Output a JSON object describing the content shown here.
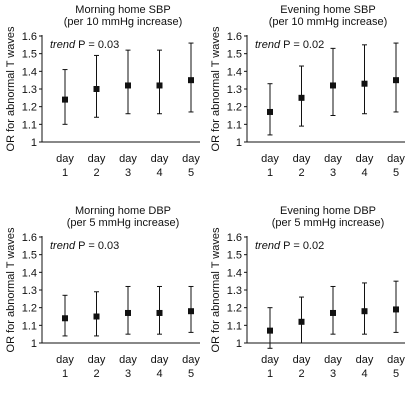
{
  "chart_data": [
    {
      "type": "scatter",
      "title": "Morning home SBP",
      "subtitle": "(per 10 mmHg increase)",
      "annotation_prefix": "trend",
      "annotation_value": "P = 0.03",
      "ylabel": "OR for abnormal T waves",
      "ylim": [
        1,
        1.6
      ],
      "yticks": [
        "1",
        "1.1",
        "1.2",
        "1.3",
        "1.4",
        "1.5",
        "1.6"
      ],
      "categories": [
        [
          "day",
          "1"
        ],
        [
          "day",
          "2"
        ],
        [
          "day",
          "3"
        ],
        [
          "day",
          "4"
        ],
        [
          "day",
          "5"
        ]
      ],
      "series": [
        {
          "values": [
            1.24,
            1.3,
            1.32,
            1.32,
            1.35
          ],
          "ci_low": [
            1.1,
            1.14,
            1.16,
            1.16,
            1.17
          ],
          "ci_high": [
            1.41,
            1.49,
            1.52,
            1.52,
            1.56
          ]
        }
      ],
      "reference_line": 1
    },
    {
      "type": "scatter",
      "title": "Evening home SBP",
      "subtitle": "(per 10 mmHg increase)",
      "annotation_prefix": "trend",
      "annotation_value": "P = 0.02",
      "ylabel": "OR for abnormal T waves",
      "ylim": [
        1,
        1.6
      ],
      "yticks": [
        "1",
        "1.1",
        "1.2",
        "1.3",
        "1.4",
        "1.5",
        "1.6"
      ],
      "categories": [
        [
          "day",
          "1"
        ],
        [
          "day",
          "2"
        ],
        [
          "day",
          "3"
        ],
        [
          "day",
          "4"
        ],
        [
          "day",
          "5"
        ]
      ],
      "series": [
        {
          "values": [
            1.17,
            1.25,
            1.32,
            1.33,
            1.35
          ],
          "ci_low": [
            1.04,
            1.09,
            1.15,
            1.16,
            1.17
          ],
          "ci_high": [
            1.33,
            1.43,
            1.53,
            1.55,
            1.56
          ]
        }
      ],
      "reference_line": 1
    },
    {
      "type": "scatter",
      "title": "Morning home DBP",
      "subtitle": "(per 5 mmHg increase)",
      "annotation_prefix": "trend",
      "annotation_value": "P = 0.03",
      "ylabel": "OR for abnormal T waves",
      "ylim": [
        1,
        1.6
      ],
      "yticks": [
        "1",
        "1.1",
        "1.2",
        "1.3",
        "1.4",
        "1.5",
        "1.6"
      ],
      "categories": [
        [
          "day",
          "1"
        ],
        [
          "day",
          "2"
        ],
        [
          "day",
          "3"
        ],
        [
          "day",
          "4"
        ],
        [
          "day",
          "5"
        ]
      ],
      "series": [
        {
          "values": [
            1.14,
            1.15,
            1.17,
            1.17,
            1.18
          ],
          "ci_low": [
            1.04,
            1.04,
            1.05,
            1.05,
            1.06
          ],
          "ci_high": [
            1.27,
            1.29,
            1.32,
            1.32,
            1.32
          ]
        }
      ],
      "reference_line": 1
    },
    {
      "type": "scatter",
      "title": "Evening home DBP",
      "subtitle": "(per 5 mmHg increase)",
      "annotation_prefix": "trend",
      "annotation_value": "P = 0.02",
      "ylabel": "OR for abnormal T waves",
      "ylim": [
        1,
        1.6
      ],
      "yticks": [
        "1",
        "1.1",
        "1.2",
        "1.3",
        "1.4",
        "1.5",
        "1.6"
      ],
      "categories": [
        [
          "day",
          "1"
        ],
        [
          "day",
          "2"
        ],
        [
          "day",
          "3"
        ],
        [
          "day",
          "4"
        ],
        [
          "day",
          "5"
        ]
      ],
      "series": [
        {
          "values": [
            1.07,
            1.12,
            1.17,
            1.18,
            1.19
          ],
          "ci_low": [
            0.97,
            1.0,
            1.05,
            1.05,
            1.06
          ],
          "ci_high": [
            1.2,
            1.26,
            1.32,
            1.34,
            1.35
          ]
        }
      ],
      "reference_line": 1
    }
  ]
}
